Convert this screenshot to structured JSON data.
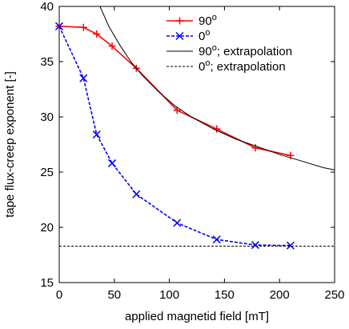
{
  "chart_data": {
    "type": "line",
    "xlabel": "applied magnetid field [mT]",
    "ylabel": "tape flux-creep exponent [-]",
    "xlim": [
      0,
      250
    ],
    "ylim": [
      15,
      40
    ],
    "xticks": [
      0,
      50,
      100,
      150,
      200,
      250
    ],
    "yticks": [
      15,
      20,
      25,
      30,
      35,
      40
    ],
    "grid": false,
    "legend_position": "top-right",
    "series": [
      {
        "name_base": "90",
        "name_sup": "o",
        "color": "#ff0000",
        "style": "solid",
        "marker": "plus",
        "x": [
          0,
          22,
          34,
          48,
          70,
          107,
          143,
          178,
          210
        ],
        "y": [
          38.2,
          38.1,
          37.5,
          36.4,
          34.4,
          30.6,
          28.9,
          27.2,
          26.5
        ]
      },
      {
        "name_base": "0",
        "name_sup": "o",
        "color": "#0000ff",
        "style": "dashed",
        "marker": "x",
        "x": [
          0,
          22,
          34,
          48,
          70,
          107,
          143,
          178,
          210
        ],
        "y": [
          38.2,
          33.5,
          28.4,
          25.8,
          23.0,
          20.4,
          18.9,
          18.4,
          18.35
        ]
      },
      {
        "name_base": "90",
        "name_sup": "o",
        "name_suffix": "; extrapolation",
        "color": "#000000",
        "style": "solid",
        "marker": "none",
        "x": [
          37,
          45,
          55,
          65,
          75,
          90,
          105,
          120,
          140,
          160,
          180,
          200,
          220,
          240,
          250
        ],
        "y": [
          40.0,
          38.2,
          36.5,
          35.0,
          33.8,
          32.3,
          31.0,
          30.0,
          28.9,
          28.0,
          27.3,
          26.6,
          26.0,
          25.4,
          25.2
        ]
      },
      {
        "name_base": "0",
        "name_sup": "o",
        "name_suffix": "; extrapolation",
        "color": "#000000",
        "style": "dashed",
        "marker": "none",
        "x": [
          0,
          250
        ],
        "y": [
          18.3,
          18.3
        ]
      }
    ]
  }
}
